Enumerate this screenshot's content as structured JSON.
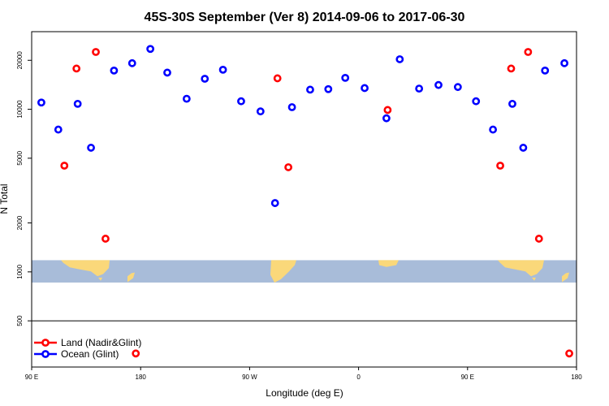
{
  "chart_data": {
    "type": "scatter",
    "title": "45S-30S September (Ver 8)   2014-09-06 to 2017-06-30",
    "xlabel": "Longitude (deg E)",
    "ylabel": "N Total",
    "y_scale": "log",
    "xlim": [
      90,
      540
    ],
    "ylim": [
      260,
      30000
    ],
    "x_ticks": [
      {
        "value": 90,
        "label": "90 E"
      },
      {
        "value": 180,
        "label": "180"
      },
      {
        "value": 270,
        "label": "90 W"
      },
      {
        "value": 360,
        "label": "0"
      },
      {
        "value": 450,
        "label": "90 E"
      },
      {
        "value": 540,
        "label": "180"
      }
    ],
    "y_ticks": [
      {
        "value": 500,
        "label": "500"
      },
      {
        "value": 1000,
        "label": "1000"
      },
      {
        "value": 2000,
        "label": "2000"
      },
      {
        "value": 5000,
        "label": "5000"
      },
      {
        "value": 10000,
        "label": "10000"
      },
      {
        "value": 20000,
        "label": "20000"
      }
    ],
    "map_band": {
      "y_from": 860,
      "y_to": 1180,
      "ocean_color": "#a8bcd9",
      "land_color": "#fad87a"
    },
    "separator_y": 500,
    "legend": {
      "position": "bottom-left"
    },
    "series": [
      {
        "name": "Land (Nadir&Glint)",
        "color": "#ff0000",
        "points": [
          {
            "x": 117,
            "y": 4500
          },
          {
            "x": 127,
            "y": 17800
          },
          {
            "x": 143,
            "y": 22500
          },
          {
            "x": 151,
            "y": 1600
          },
          {
            "x": 176,
            "y": 315
          },
          {
            "x": 293,
            "y": 15500
          },
          {
            "x": 302,
            "y": 4400
          },
          {
            "x": 384,
            "y": 9900
          },
          {
            "x": 477,
            "y": 4500
          },
          {
            "x": 486,
            "y": 17800
          },
          {
            "x": 500,
            "y": 22500
          },
          {
            "x": 509,
            "y": 1600
          },
          {
            "x": 534,
            "y": 315
          }
        ]
      },
      {
        "name": "Ocean (Glint)",
        "color": "#0000ff",
        "points": [
          {
            "x": 98,
            "y": 11000
          },
          {
            "x": 112,
            "y": 7500
          },
          {
            "x": 128,
            "y": 10800
          },
          {
            "x": 139,
            "y": 5800
          },
          {
            "x": 158,
            "y": 17300
          },
          {
            "x": 173,
            "y": 19200
          },
          {
            "x": 188,
            "y": 23500
          },
          {
            "x": 202,
            "y": 16800
          },
          {
            "x": 218,
            "y": 11600
          },
          {
            "x": 233,
            "y": 15400
          },
          {
            "x": 248,
            "y": 17500
          },
          {
            "x": 263,
            "y": 11200
          },
          {
            "x": 279,
            "y": 9700
          },
          {
            "x": 291,
            "y": 2650
          },
          {
            "x": 305,
            "y": 10300
          },
          {
            "x": 320,
            "y": 13200
          },
          {
            "x": 335,
            "y": 13300
          },
          {
            "x": 349,
            "y": 15600
          },
          {
            "x": 365,
            "y": 13500
          },
          {
            "x": 383,
            "y": 8800
          },
          {
            "x": 394,
            "y": 20300
          },
          {
            "x": 410,
            "y": 13400
          },
          {
            "x": 426,
            "y": 14100
          },
          {
            "x": 442,
            "y": 13700
          },
          {
            "x": 457,
            "y": 11200
          },
          {
            "x": 471,
            "y": 7500
          },
          {
            "x": 487,
            "y": 10800
          },
          {
            "x": 496,
            "y": 5800
          },
          {
            "x": 514,
            "y": 17300
          },
          {
            "x": 530,
            "y": 19200
          }
        ]
      }
    ]
  }
}
